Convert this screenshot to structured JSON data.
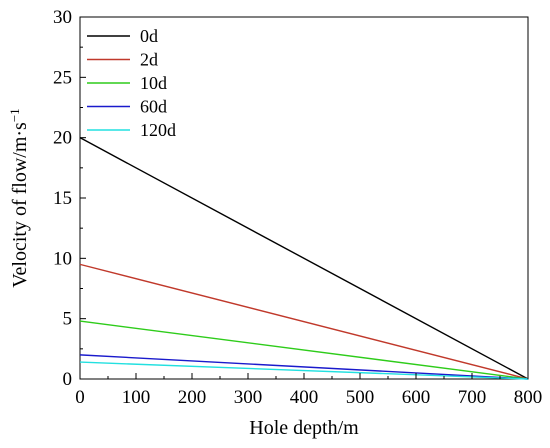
{
  "chart_data": {
    "type": "line",
    "xlabel": "Hole depth/m",
    "ylabel": "Velocity of flow/m·s",
    "ylabel_superscript": "−1",
    "xlim": [
      0,
      800
    ],
    "ylim": [
      0,
      30
    ],
    "xticks": [
      "0",
      "100",
      "200",
      "300",
      "400",
      "500",
      "600",
      "700",
      "800"
    ],
    "yticks": [
      "0",
      "5",
      "10",
      "15",
      "20",
      "25",
      "30"
    ],
    "grid": false,
    "legend_position": "top-left",
    "series": [
      {
        "name": "0d",
        "color": "#000000",
        "x": [
          0,
          800
        ],
        "y": [
          20.0,
          0
        ]
      },
      {
        "name": "2d",
        "color": "#c0392b",
        "x": [
          0,
          800
        ],
        "y": [
          9.5,
          0
        ]
      },
      {
        "name": "10d",
        "color": "#2ecc1a",
        "x": [
          0,
          800
        ],
        "y": [
          4.8,
          0
        ]
      },
      {
        "name": "60d",
        "color": "#1a1acc",
        "x": [
          0,
          800
        ],
        "y": [
          2.0,
          0
        ]
      },
      {
        "name": "120d",
        "color": "#22e0e0",
        "x": [
          0,
          800
        ],
        "y": [
          1.4,
          0
        ]
      }
    ]
  }
}
